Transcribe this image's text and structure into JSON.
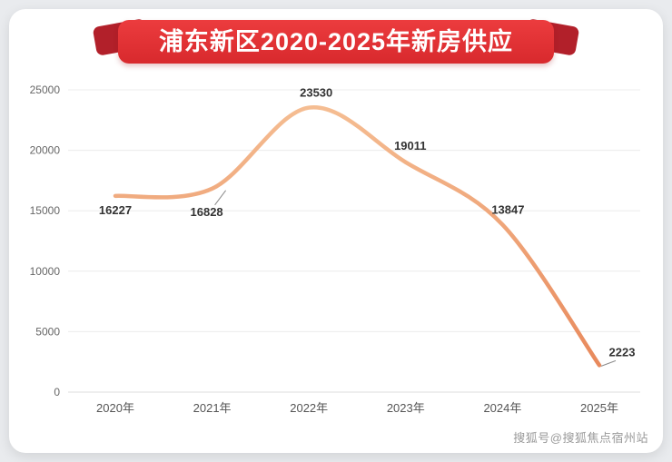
{
  "header": {
    "title": "浦东新区2020-2025年新房供应"
  },
  "page": {
    "watermark": "搜狐号@搜狐焦点宿州站"
  },
  "colors": {
    "banner_red": "#d8292d",
    "ribbon_tail_red": "#b2202a",
    "line_top": "#f5bd92",
    "line_bottom": "#e8895c",
    "grid": "#ececec",
    "axis_text": "#666666",
    "label_text": "#333333"
  },
  "chart_data": {
    "type": "line",
    "title": "浦东新区2020-2025年新房供应",
    "categories": [
      "2020年",
      "2021年",
      "2022年",
      "2023年",
      "2024年",
      "2025年"
    ],
    "values": [
      16227,
      16828,
      23530,
      19011,
      13847,
      2223
    ],
    "xlabel": "",
    "ylabel": "",
    "ylim": [
      0,
      25000
    ],
    "yticks": [
      0,
      5000,
      10000,
      15000,
      20000,
      25000
    ],
    "grid": true,
    "smooth": true,
    "legend": "none",
    "line_color_top": "#f5bd92",
    "line_color_bottom": "#e8895c"
  }
}
